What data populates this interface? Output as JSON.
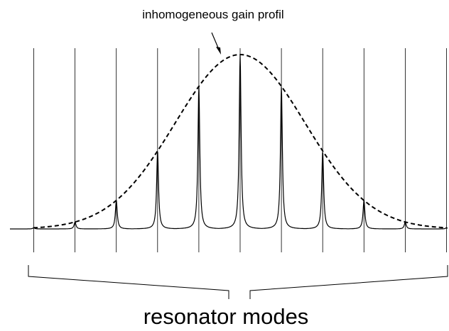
{
  "title": "inhomogeneous gain profil",
  "caption": "resonator modes"
}
